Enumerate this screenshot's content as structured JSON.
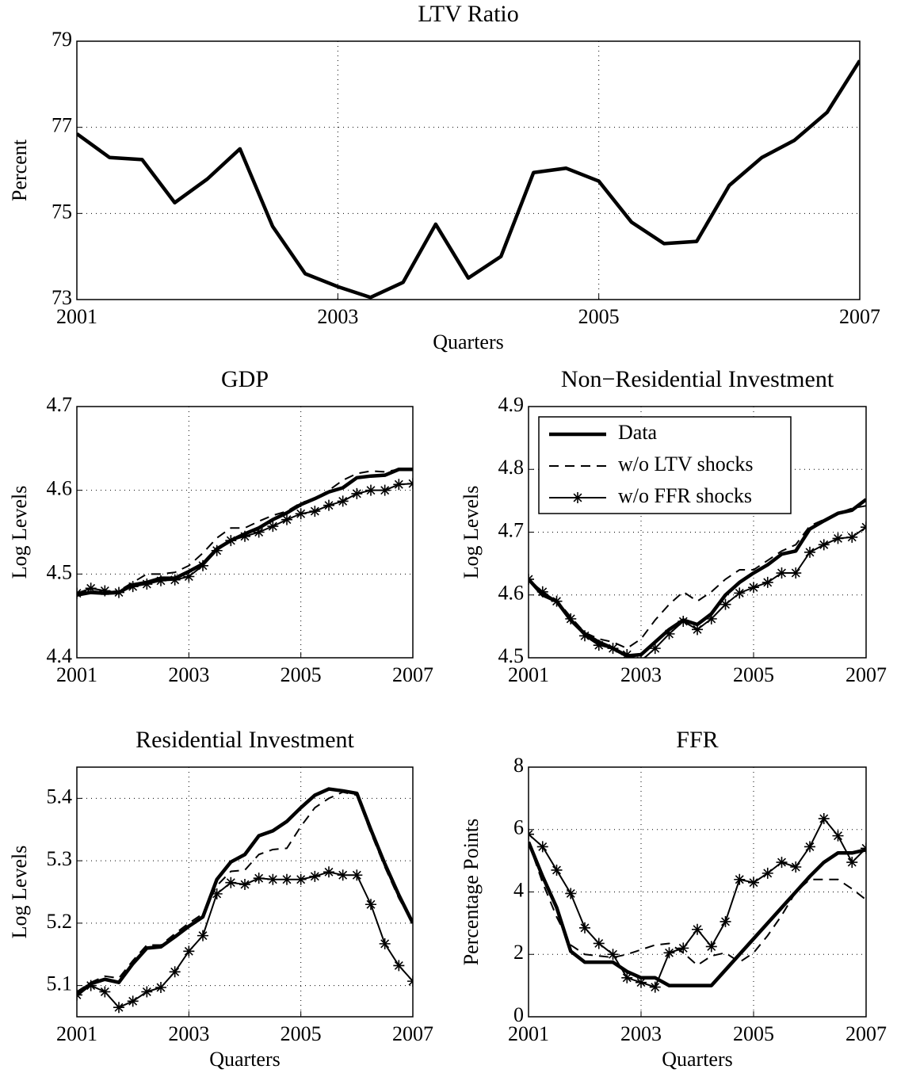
{
  "chart_data": [
    {
      "type": "line",
      "title": "LTV Ratio",
      "y_label": "Percent",
      "x_label": "Quarters",
      "x": [
        2001,
        2001.25,
        2001.5,
        2001.75,
        2002,
        2002.25,
        2002.5,
        2002.75,
        2003,
        2003.25,
        2003.5,
        2003.75,
        2004,
        2004.25,
        2004.5,
        2004.75,
        2005,
        2005.25,
        2005.5,
        2005.75,
        2006,
        2006.25,
        2006.5,
        2006.75,
        2007
      ],
      "xlim": [
        2001,
        2007
      ],
      "xticks": [
        2001,
        2003,
        2005,
        2007
      ],
      "ylim": [
        73,
        79
      ],
      "yticks": [
        73,
        75,
        77,
        79
      ],
      "grid": true,
      "series": [
        {
          "color": "#000000",
          "style": "thick",
          "values": [
            76.85,
            76.3,
            76.25,
            75.25,
            75.8,
            76.5,
            74.7,
            73.6,
            73.3,
            73.05,
            73.4,
            74.75,
            73.5,
            74.0,
            75.95,
            76.05,
            75.75,
            74.8,
            74.3,
            74.35,
            75.65,
            76.3,
            76.7,
            77.35,
            78.55
          ]
        }
      ]
    },
    {
      "type": "line",
      "title": "GDP",
      "y_label": "Log Levels",
      "x": [
        2001,
        2001.25,
        2001.5,
        2001.75,
        2002,
        2002.25,
        2002.5,
        2002.75,
        2003,
        2003.25,
        2003.5,
        2003.75,
        2004,
        2004.25,
        2004.5,
        2004.75,
        2005,
        2005.25,
        2005.5,
        2005.75,
        2006,
        2006.25,
        2006.5,
        2006.75,
        2007
      ],
      "xlim": [
        2001,
        2007
      ],
      "xticks": [
        2001,
        2003,
        2005,
        2007
      ],
      "ylim": [
        4.4,
        4.7
      ],
      "yticks": [
        4.4,
        4.5,
        4.6,
        4.7
      ],
      "grid": true,
      "series": [
        {
          "color": "#000000",
          "style": "thick",
          "values": [
            4.475,
            4.478,
            4.477,
            4.478,
            4.487,
            4.49,
            4.495,
            4.495,
            4.503,
            4.512,
            4.53,
            4.54,
            4.548,
            4.555,
            4.565,
            4.573,
            4.583,
            4.59,
            4.598,
            4.603,
            4.615,
            4.617,
            4.618,
            4.625,
            4.625
          ]
        },
        {
          "color": "#000000",
          "style": "dashed",
          "values": [
            4.478,
            4.48,
            4.478,
            4.48,
            4.49,
            4.5,
            4.5,
            4.502,
            4.51,
            4.525,
            4.543,
            4.555,
            4.555,
            4.563,
            4.57,
            4.575,
            4.585,
            4.59,
            4.6,
            4.612,
            4.62,
            4.623,
            4.622,
            4.625,
            4.625
          ]
        },
        {
          "color": "#000000",
          "style": "star",
          "values": [
            4.477,
            4.483,
            4.48,
            4.478,
            4.485,
            4.488,
            4.492,
            4.493,
            4.497,
            4.51,
            4.528,
            4.54,
            4.545,
            4.55,
            4.557,
            4.565,
            4.572,
            4.575,
            4.582,
            4.587,
            4.596,
            4.6,
            4.6,
            4.607,
            4.608
          ]
        }
      ]
    },
    {
      "type": "line",
      "title": "Non−Residential Investment",
      "y_label": "Log Levels",
      "legend": "upper left",
      "x": [
        2001,
        2001.25,
        2001.5,
        2001.75,
        2002,
        2002.25,
        2002.5,
        2002.75,
        2003,
        2003.25,
        2003.5,
        2003.75,
        2004,
        2004.25,
        2004.5,
        2004.75,
        2005,
        2005.25,
        2005.5,
        2005.75,
        2006,
        2006.25,
        2006.5,
        2006.75,
        2007
      ],
      "xlim": [
        2001,
        2007
      ],
      "xticks": [
        2001,
        2003,
        2005,
        2007
      ],
      "ylim": [
        4.5,
        4.9
      ],
      "yticks": [
        4.5,
        4.6,
        4.7,
        4.8,
        4.9
      ],
      "grid": true,
      "series": [
        {
          "name": "Data",
          "color": "#000000",
          "style": "thick",
          "values": [
            4.625,
            4.6,
            4.59,
            4.56,
            4.538,
            4.525,
            4.515,
            4.503,
            4.505,
            4.525,
            4.545,
            4.56,
            4.553,
            4.57,
            4.6,
            4.62,
            4.635,
            4.648,
            4.665,
            4.67,
            4.705,
            4.718,
            4.73,
            4.735,
            4.752
          ]
        },
        {
          "name": "w/o LTV shocks",
          "color": "#000000",
          "style": "dashed",
          "values": [
            4.625,
            4.605,
            4.592,
            4.565,
            4.54,
            4.53,
            4.525,
            4.515,
            4.53,
            4.56,
            4.585,
            4.605,
            4.59,
            4.605,
            4.625,
            4.64,
            4.64,
            4.655,
            4.67,
            4.68,
            4.71,
            4.72,
            4.73,
            4.738,
            4.742
          ]
        },
        {
          "name": "w/o FFR shocks",
          "color": "#000000",
          "style": "star",
          "values": [
            4.625,
            4.605,
            4.59,
            4.562,
            4.535,
            4.52,
            4.515,
            4.505,
            4.495,
            4.515,
            4.538,
            4.558,
            4.545,
            4.562,
            4.585,
            4.603,
            4.612,
            4.62,
            4.635,
            4.635,
            4.668,
            4.68,
            4.69,
            4.692,
            4.708
          ]
        }
      ]
    },
    {
      "type": "line",
      "title": "Residential Investment",
      "y_label": "Log Levels",
      "x_label": "Quarters",
      "x": [
        2001,
        2001.25,
        2001.5,
        2001.75,
        2002,
        2002.25,
        2002.5,
        2002.75,
        2003,
        2003.25,
        2003.5,
        2003.75,
        2004,
        2004.25,
        2004.5,
        2004.75,
        2005,
        2005.25,
        2005.5,
        2005.75,
        2006,
        2006.25,
        2006.5,
        2006.75,
        2007
      ],
      "xlim": [
        2001,
        2007
      ],
      "xticks": [
        2001,
        2003,
        2005,
        2007
      ],
      "ylim": [
        5.05,
        5.45
      ],
      "yticks": [
        5.1,
        5.2,
        5.3,
        5.4
      ],
      "grid": true,
      "series": [
        {
          "color": "#000000",
          "style": "thick",
          "values": [
            5.085,
            5.103,
            5.11,
            5.105,
            5.135,
            5.16,
            5.162,
            5.178,
            5.195,
            5.21,
            5.27,
            5.298,
            5.31,
            5.34,
            5.348,
            5.363,
            5.385,
            5.405,
            5.415,
            5.412,
            5.408,
            5.35,
            5.295,
            5.245,
            5.2
          ]
        },
        {
          "color": "#000000",
          "style": "dashed",
          "values": [
            5.09,
            5.105,
            5.115,
            5.112,
            5.14,
            5.165,
            5.165,
            5.183,
            5.2,
            5.215,
            5.26,
            5.283,
            5.285,
            5.31,
            5.318,
            5.32,
            5.355,
            5.385,
            5.4,
            5.41,
            5.405,
            5.345,
            5.29,
            5.24,
            5.2
          ]
        },
        {
          "color": "#000000",
          "style": "star",
          "values": [
            5.085,
            5.1,
            5.09,
            5.065,
            5.075,
            5.09,
            5.097,
            5.122,
            5.155,
            5.18,
            5.247,
            5.265,
            5.262,
            5.272,
            5.27,
            5.27,
            5.27,
            5.275,
            5.282,
            5.277,
            5.277,
            5.23,
            5.167,
            5.132,
            5.107
          ]
        }
      ]
    },
    {
      "type": "line",
      "title": "FFR",
      "y_label": "Percentage Points",
      "x_label": "Quarters",
      "x": [
        2001,
        2001.25,
        2001.5,
        2001.75,
        2002,
        2002.25,
        2002.5,
        2002.75,
        2003,
        2003.25,
        2003.5,
        2003.75,
        2004,
        2004.25,
        2004.5,
        2004.75,
        2005,
        2005.25,
        2005.5,
        2005.75,
        2006,
        2006.25,
        2006.5,
        2006.75,
        2007
      ],
      "xlim": [
        2001,
        2007
      ],
      "xticks": [
        2001,
        2003,
        2005,
        2007
      ],
      "ylim": [
        0,
        8
      ],
      "yticks": [
        0,
        2,
        4,
        6,
        8
      ],
      "grid": true,
      "series": [
        {
          "color": "#000000",
          "style": "thick",
          "values": [
            5.6,
            4.5,
            3.5,
            2.1,
            1.75,
            1.75,
            1.75,
            1.45,
            1.25,
            1.25,
            1.0,
            1.0,
            1.0,
            1.0,
            1.5,
            2.0,
            2.5,
            3.0,
            3.5,
            4.0,
            4.5,
            4.95,
            5.25,
            5.25,
            5.35
          ]
        },
        {
          "color": "#000000",
          "style": "dashed",
          "values": [
            5.6,
            4.3,
            3.2,
            2.3,
            2.0,
            1.95,
            1.9,
            2.0,
            2.15,
            2.3,
            2.35,
            2.05,
            1.65,
            1.95,
            2.05,
            1.75,
            2.05,
            2.6,
            3.25,
            4.0,
            4.4,
            4.4,
            4.4,
            4.1,
            3.75
          ]
        },
        {
          "color": "#000000",
          "style": "star",
          "values": [
            5.85,
            5.45,
            4.7,
            3.95,
            2.85,
            2.35,
            2.0,
            1.25,
            1.1,
            0.95,
            2.05,
            2.2,
            2.8,
            2.25,
            3.05,
            4.4,
            4.3,
            4.6,
            4.95,
            4.8,
            5.45,
            6.35,
            5.8,
            4.95,
            5.4
          ]
        }
      ]
    }
  ]
}
